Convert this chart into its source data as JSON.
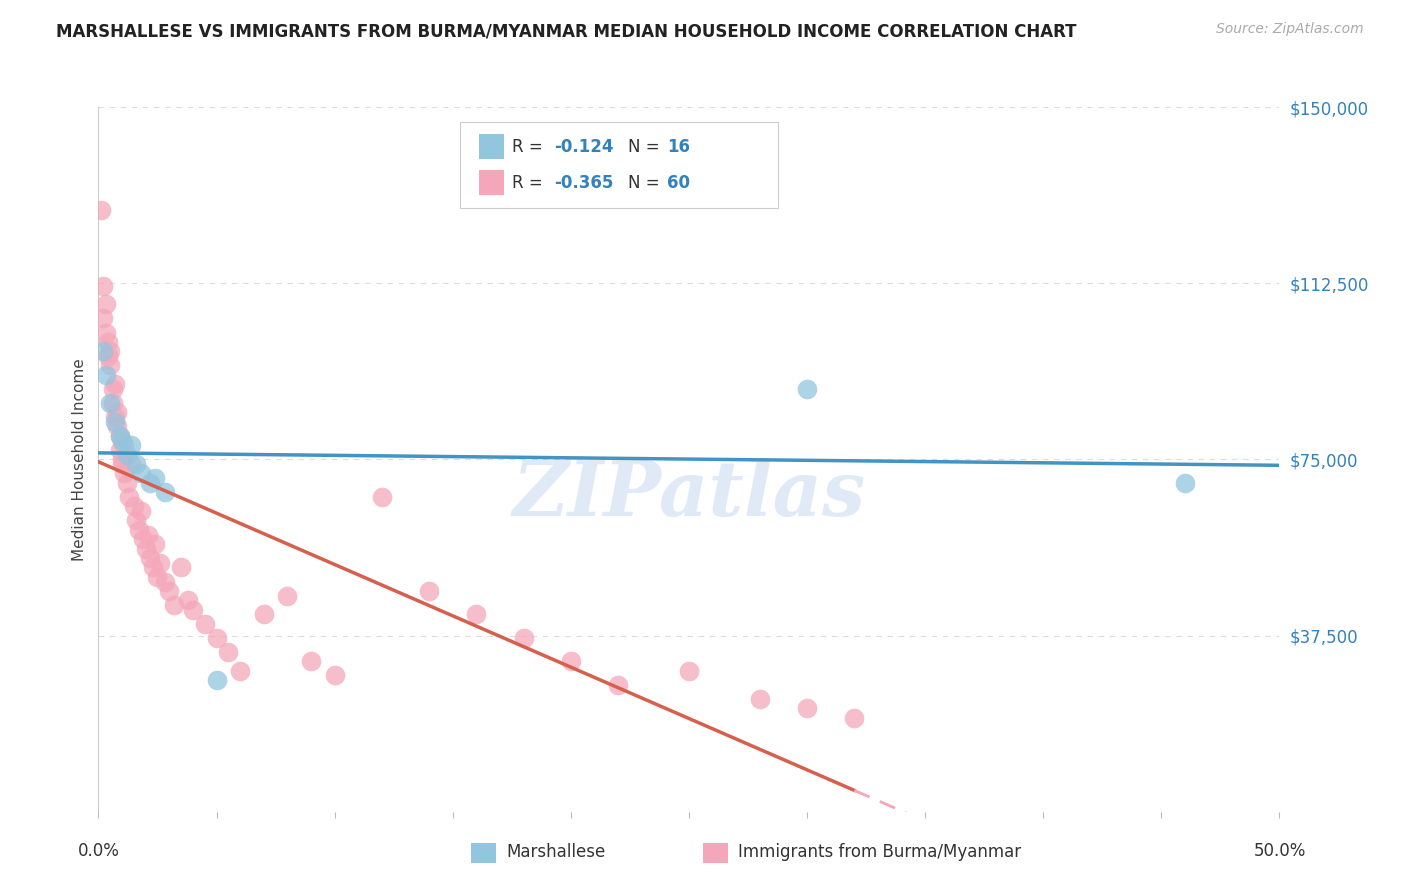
{
  "title": "MARSHALLESE VS IMMIGRANTS FROM BURMA/MYANMAR MEDIAN HOUSEHOLD INCOME CORRELATION CHART",
  "source": "Source: ZipAtlas.com",
  "ylabel": "Median Household Income",
  "yticks": [
    0,
    37500,
    75000,
    112500,
    150000
  ],
  "ytick_labels": [
    "",
    "$37,500",
    "$75,000",
    "$112,500",
    "$150,000"
  ],
  "xlim": [
    0.0,
    0.5
  ],
  "ylim": [
    0,
    150000
  ],
  "watermark": "ZIPatlas",
  "blue_color": "#92c5de",
  "pink_color": "#f4a7b9",
  "blue_line_color": "#4393c3",
  "pink_line_color": "#d6604d",
  "dashed_line_color": "#f4a7b9",
  "marshallese_x": [
    0.002,
    0.003,
    0.005,
    0.007,
    0.009,
    0.01,
    0.012,
    0.014,
    0.016,
    0.018,
    0.022,
    0.024,
    0.028,
    0.3,
    0.46,
    0.05
  ],
  "marshallese_y": [
    98000,
    93000,
    87000,
    83000,
    80000,
    79000,
    76000,
    78000,
    74000,
    72000,
    70000,
    71000,
    68000,
    90000,
    70000,
    28000
  ],
  "burma_x": [
    0.001,
    0.002,
    0.002,
    0.003,
    0.003,
    0.004,
    0.004,
    0.005,
    0.005,
    0.006,
    0.006,
    0.007,
    0.007,
    0.008,
    0.008,
    0.009,
    0.009,
    0.01,
    0.01,
    0.011,
    0.011,
    0.012,
    0.013,
    0.014,
    0.015,
    0.016,
    0.017,
    0.018,
    0.019,
    0.02,
    0.021,
    0.022,
    0.023,
    0.024,
    0.025,
    0.026,
    0.028,
    0.03,
    0.032,
    0.035,
    0.038,
    0.04,
    0.045,
    0.05,
    0.055,
    0.06,
    0.07,
    0.08,
    0.09,
    0.1,
    0.12,
    0.14,
    0.16,
    0.18,
    0.2,
    0.22,
    0.25,
    0.28,
    0.3,
    0.32
  ],
  "burma_y": [
    128000,
    112000,
    105000,
    108000,
    102000,
    100000,
    97000,
    95000,
    98000,
    90000,
    87000,
    84000,
    91000,
    82000,
    85000,
    80000,
    77000,
    75000,
    74000,
    78000,
    72000,
    70000,
    67000,
    74000,
    65000,
    62000,
    60000,
    64000,
    58000,
    56000,
    59000,
    54000,
    52000,
    57000,
    50000,
    53000,
    49000,
    47000,
    44000,
    52000,
    45000,
    43000,
    40000,
    37000,
    34000,
    30000,
    42000,
    46000,
    32000,
    29000,
    67000,
    47000,
    42000,
    37000,
    32000,
    27000,
    30000,
    24000,
    22000,
    20000
  ]
}
